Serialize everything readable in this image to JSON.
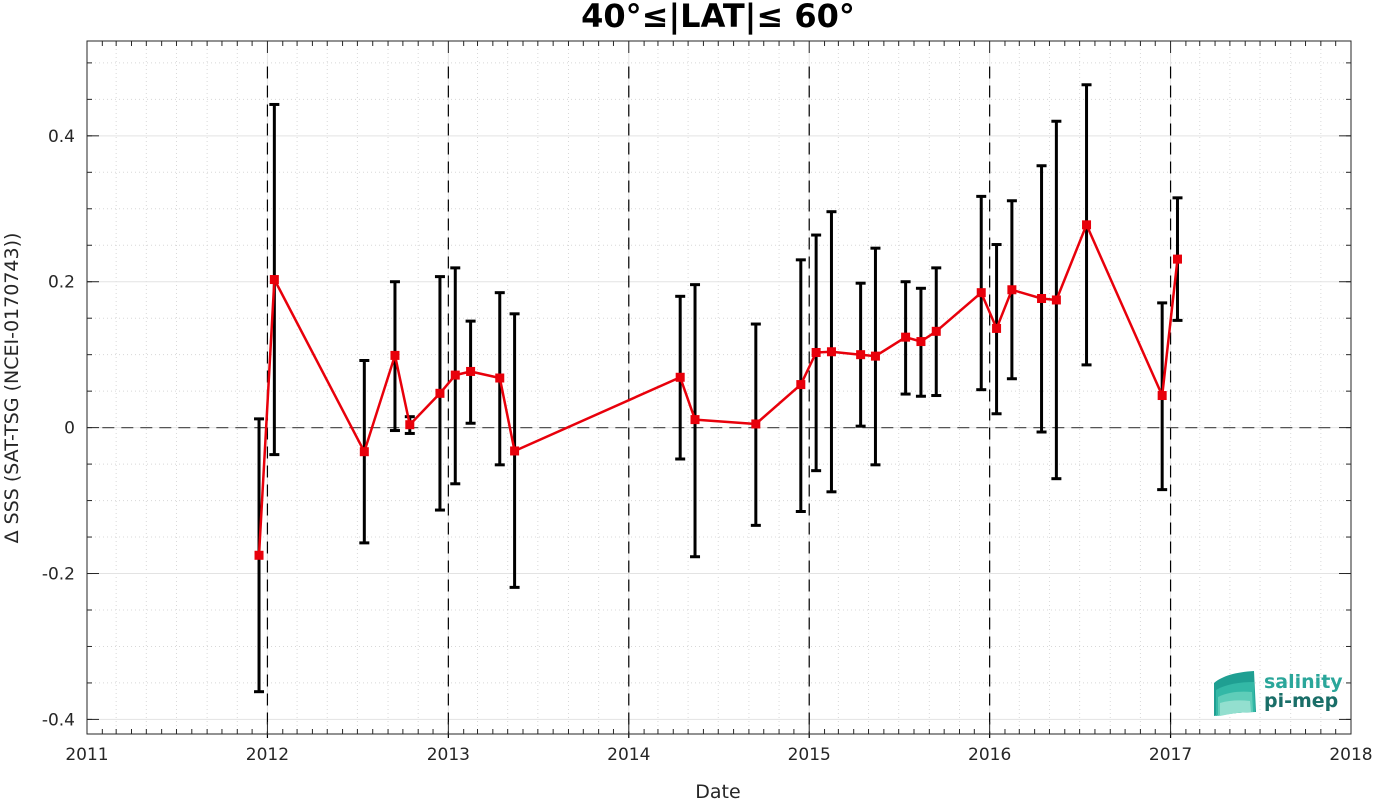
{
  "chart_data": {
    "type": "line",
    "title": "40°≤|LAT|≤ 60°",
    "xlabel": "Date",
    "ylabel": "Δ SSS (SAT-TSG (NCEI-0170743))",
    "xlim": [
      "2011-01-01",
      "2018-01-01"
    ],
    "ylim": [
      -0.42,
      0.53
    ],
    "x_ticks": [
      "2011",
      "2012",
      "2013",
      "2014",
      "2015",
      "2016",
      "2017",
      "2018"
    ],
    "y_ticks": [
      -0.4,
      -0.2,
      0,
      0.2,
      0.4
    ],
    "y_tick_labels": [
      "-0.4",
      "-0.2",
      "0",
      "0.2",
      "0.4"
    ],
    "grid": true,
    "reference_line_y": 0,
    "year_boundary_lines": [
      "2012-01-01",
      "2013-01-01",
      "2014-01-01",
      "2015-01-01",
      "2016-01-01",
      "2017-01-01"
    ],
    "colors": {
      "series": "#e8000b",
      "error_bars": "#000000",
      "reference": "#555555"
    },
    "series": [
      {
        "marker": "square",
        "points": [
          {
            "x": "2011-12-15",
            "y": -0.175,
            "err_low": -0.362,
            "err_high": 0.012
          },
          {
            "x": "2012-01-15",
            "y": 0.203,
            "err_low": -0.037,
            "err_high": 0.443
          },
          {
            "x": "2012-07-15",
            "y": -0.033,
            "err_low": -0.158,
            "err_high": 0.092
          },
          {
            "x": "2012-09-15",
            "y": 0.099,
            "err_low": -0.004,
            "err_high": 0.2
          },
          {
            "x": "2012-10-15",
            "y": 0.004,
            "err_low": -0.008,
            "err_high": 0.015
          },
          {
            "x": "2012-12-15",
            "y": 0.047,
            "err_low": -0.113,
            "err_high": 0.207
          },
          {
            "x": "2013-01-15",
            "y": 0.072,
            "err_low": -0.077,
            "err_high": 0.219
          },
          {
            "x": "2013-02-15",
            "y": 0.077,
            "err_low": 0.006,
            "err_high": 0.146
          },
          {
            "x": "2013-04-15",
            "y": 0.068,
            "err_low": -0.051,
            "err_high": 0.185
          },
          {
            "x": "2013-05-15",
            "y": -0.032,
            "err_low": -0.219,
            "err_high": 0.156
          },
          {
            "x": "2014-04-15",
            "y": 0.069,
            "err_low": -0.043,
            "err_high": 0.18
          },
          {
            "x": "2014-05-15",
            "y": 0.011,
            "err_low": -0.177,
            "err_high": 0.196
          },
          {
            "x": "2014-09-15",
            "y": 0.005,
            "err_low": -0.134,
            "err_high": 0.142
          },
          {
            "x": "2014-12-15",
            "y": 0.059,
            "err_low": -0.115,
            "err_high": 0.23
          },
          {
            "x": "2015-01-15",
            "y": 0.103,
            "err_low": -0.059,
            "err_high": 0.264
          },
          {
            "x": "2015-02-15",
            "y": 0.104,
            "err_low": -0.088,
            "err_high": 0.296
          },
          {
            "x": "2015-04-15",
            "y": 0.1,
            "err_low": 0.002,
            "err_high": 0.198
          },
          {
            "x": "2015-05-15",
            "y": 0.098,
            "err_low": -0.051,
            "err_high": 0.246
          },
          {
            "x": "2015-07-15",
            "y": 0.124,
            "err_low": 0.046,
            "err_high": 0.2
          },
          {
            "x": "2015-08-15",
            "y": 0.118,
            "err_low": 0.043,
            "err_high": 0.191
          },
          {
            "x": "2015-09-15",
            "y": 0.132,
            "err_low": 0.044,
            "err_high": 0.219
          },
          {
            "x": "2015-12-15",
            "y": 0.185,
            "err_low": 0.052,
            "err_high": 0.317
          },
          {
            "x": "2016-01-15",
            "y": 0.136,
            "err_low": 0.019,
            "err_high": 0.251
          },
          {
            "x": "2016-02-15",
            "y": 0.189,
            "err_low": 0.067,
            "err_high": 0.311
          },
          {
            "x": "2016-04-15",
            "y": 0.177,
            "err_low": -0.006,
            "err_high": 0.359
          },
          {
            "x": "2016-05-15",
            "y": 0.175,
            "err_low": -0.07,
            "err_high": 0.42
          },
          {
            "x": "2016-07-15",
            "y": 0.278,
            "err_low": 0.086,
            "err_high": 0.47
          },
          {
            "x": "2016-12-15",
            "y": 0.044,
            "err_low": -0.085,
            "err_high": 0.171
          },
          {
            "x": "2017-01-15",
            "y": 0.231,
            "err_low": 0.147,
            "err_high": 0.315
          }
        ]
      }
    ]
  },
  "logo": {
    "line1": "salinity",
    "line2": "pi-mep",
    "color1": "#2aa69a",
    "color2": "#1a6e68"
  }
}
